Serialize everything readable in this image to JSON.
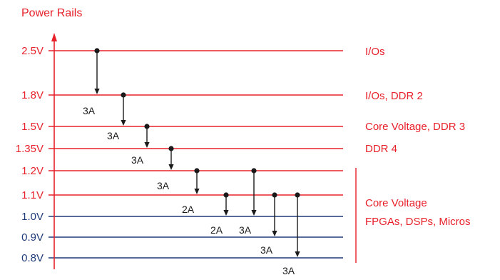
{
  "title": "Power Rails",
  "colors": {
    "red": "#e8202a",
    "blue": "#1f3a78",
    "dark": "#1a1a1a"
  },
  "rails": [
    {
      "voltage": "2.5V",
      "color": "red"
    },
    {
      "voltage": "1.8V",
      "color": "red"
    },
    {
      "voltage": "1.5V",
      "color": "red"
    },
    {
      "voltage": "1.35V",
      "color": "red"
    },
    {
      "voltage": "1.2V",
      "color": "red"
    },
    {
      "voltage": "1.1V",
      "color": "red"
    },
    {
      "voltage": "1.0V",
      "color": "blue"
    },
    {
      "voltage": "0.9V",
      "color": "blue"
    },
    {
      "voltage": "0.8V",
      "color": "blue"
    }
  ],
  "applications": [
    {
      "text": "I/Os"
    },
    {
      "text": "I/Os, DDR 2"
    },
    {
      "text": "Core Voltage, DDR 3"
    },
    {
      "text": "DDR 4"
    },
    {
      "lines": [
        "Core Voltage",
        "FPGAs, DSPs, Micros"
      ]
    }
  ],
  "regulators": [
    {
      "from": "2.5V",
      "to": "1.8V",
      "current": "3A"
    },
    {
      "from": "1.8V",
      "to": "1.5V",
      "current": "3A"
    },
    {
      "from": "1.5V",
      "to": "1.35V",
      "current": "3A"
    },
    {
      "from": "1.35V",
      "to": "1.2V",
      "current": "3A"
    },
    {
      "from": "1.2V",
      "to": "1.1V",
      "current": "2A"
    },
    {
      "from": "1.1V",
      "to": "1.0V",
      "current": "2A"
    },
    {
      "from": "1.2V",
      "to": "1.0V",
      "current": "3A"
    },
    {
      "from": "1.1V",
      "to": "0.9V",
      "current": "3A"
    },
    {
      "from": "1.1V",
      "to": "0.8V",
      "current": "3A"
    }
  ]
}
